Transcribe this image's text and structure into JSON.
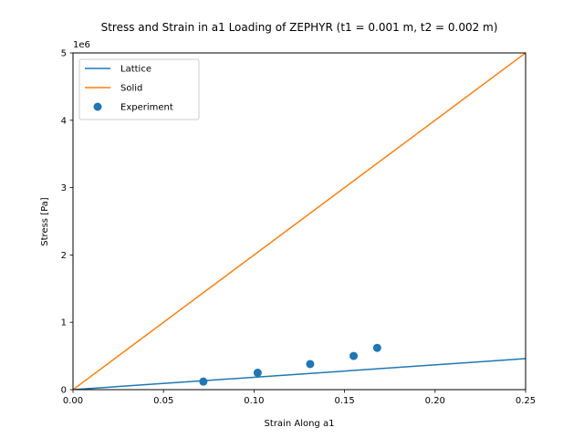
{
  "chart_data": {
    "type": "line",
    "title": "Stress and Strain in a1 Loading of ZEPHYR (t1 = 0.001 m, t2 = 0.002 m)",
    "xlabel": "Strain Along a1",
    "ylabel": "Stress [Pa]",
    "y_offset_label": "1e6",
    "xlim": [
      0,
      0.25
    ],
    "ylim": [
      0,
      5000000
    ],
    "x_ticks": [
      0.0,
      0.05,
      0.1,
      0.15,
      0.2,
      0.25
    ],
    "x_tick_labels": [
      "0.00",
      "0.05",
      "0.10",
      "0.15",
      "0.20",
      "0.25"
    ],
    "y_ticks": [
      0,
      1000000,
      2000000,
      3000000,
      4000000,
      5000000
    ],
    "y_tick_labels": [
      "0",
      "1",
      "2",
      "3",
      "4",
      "5"
    ],
    "grid": false,
    "legend_position": "top-left",
    "series": [
      {
        "name": "Lattice",
        "kind": "line",
        "color": "#1f77b4",
        "x": [
          0,
          0.25
        ],
        "y": [
          0,
          460000
        ]
      },
      {
        "name": "Solid",
        "kind": "line",
        "color": "#ff7f0e",
        "x": [
          0,
          0.25
        ],
        "y": [
          0,
          5000000
        ]
      },
      {
        "name": "Experiment",
        "kind": "scatter",
        "color": "#1f77b4",
        "x": [
          0.072,
          0.102,
          0.131,
          0.155,
          0.168
        ],
        "y": [
          120000,
          250000,
          380000,
          500000,
          620000
        ]
      }
    ]
  }
}
